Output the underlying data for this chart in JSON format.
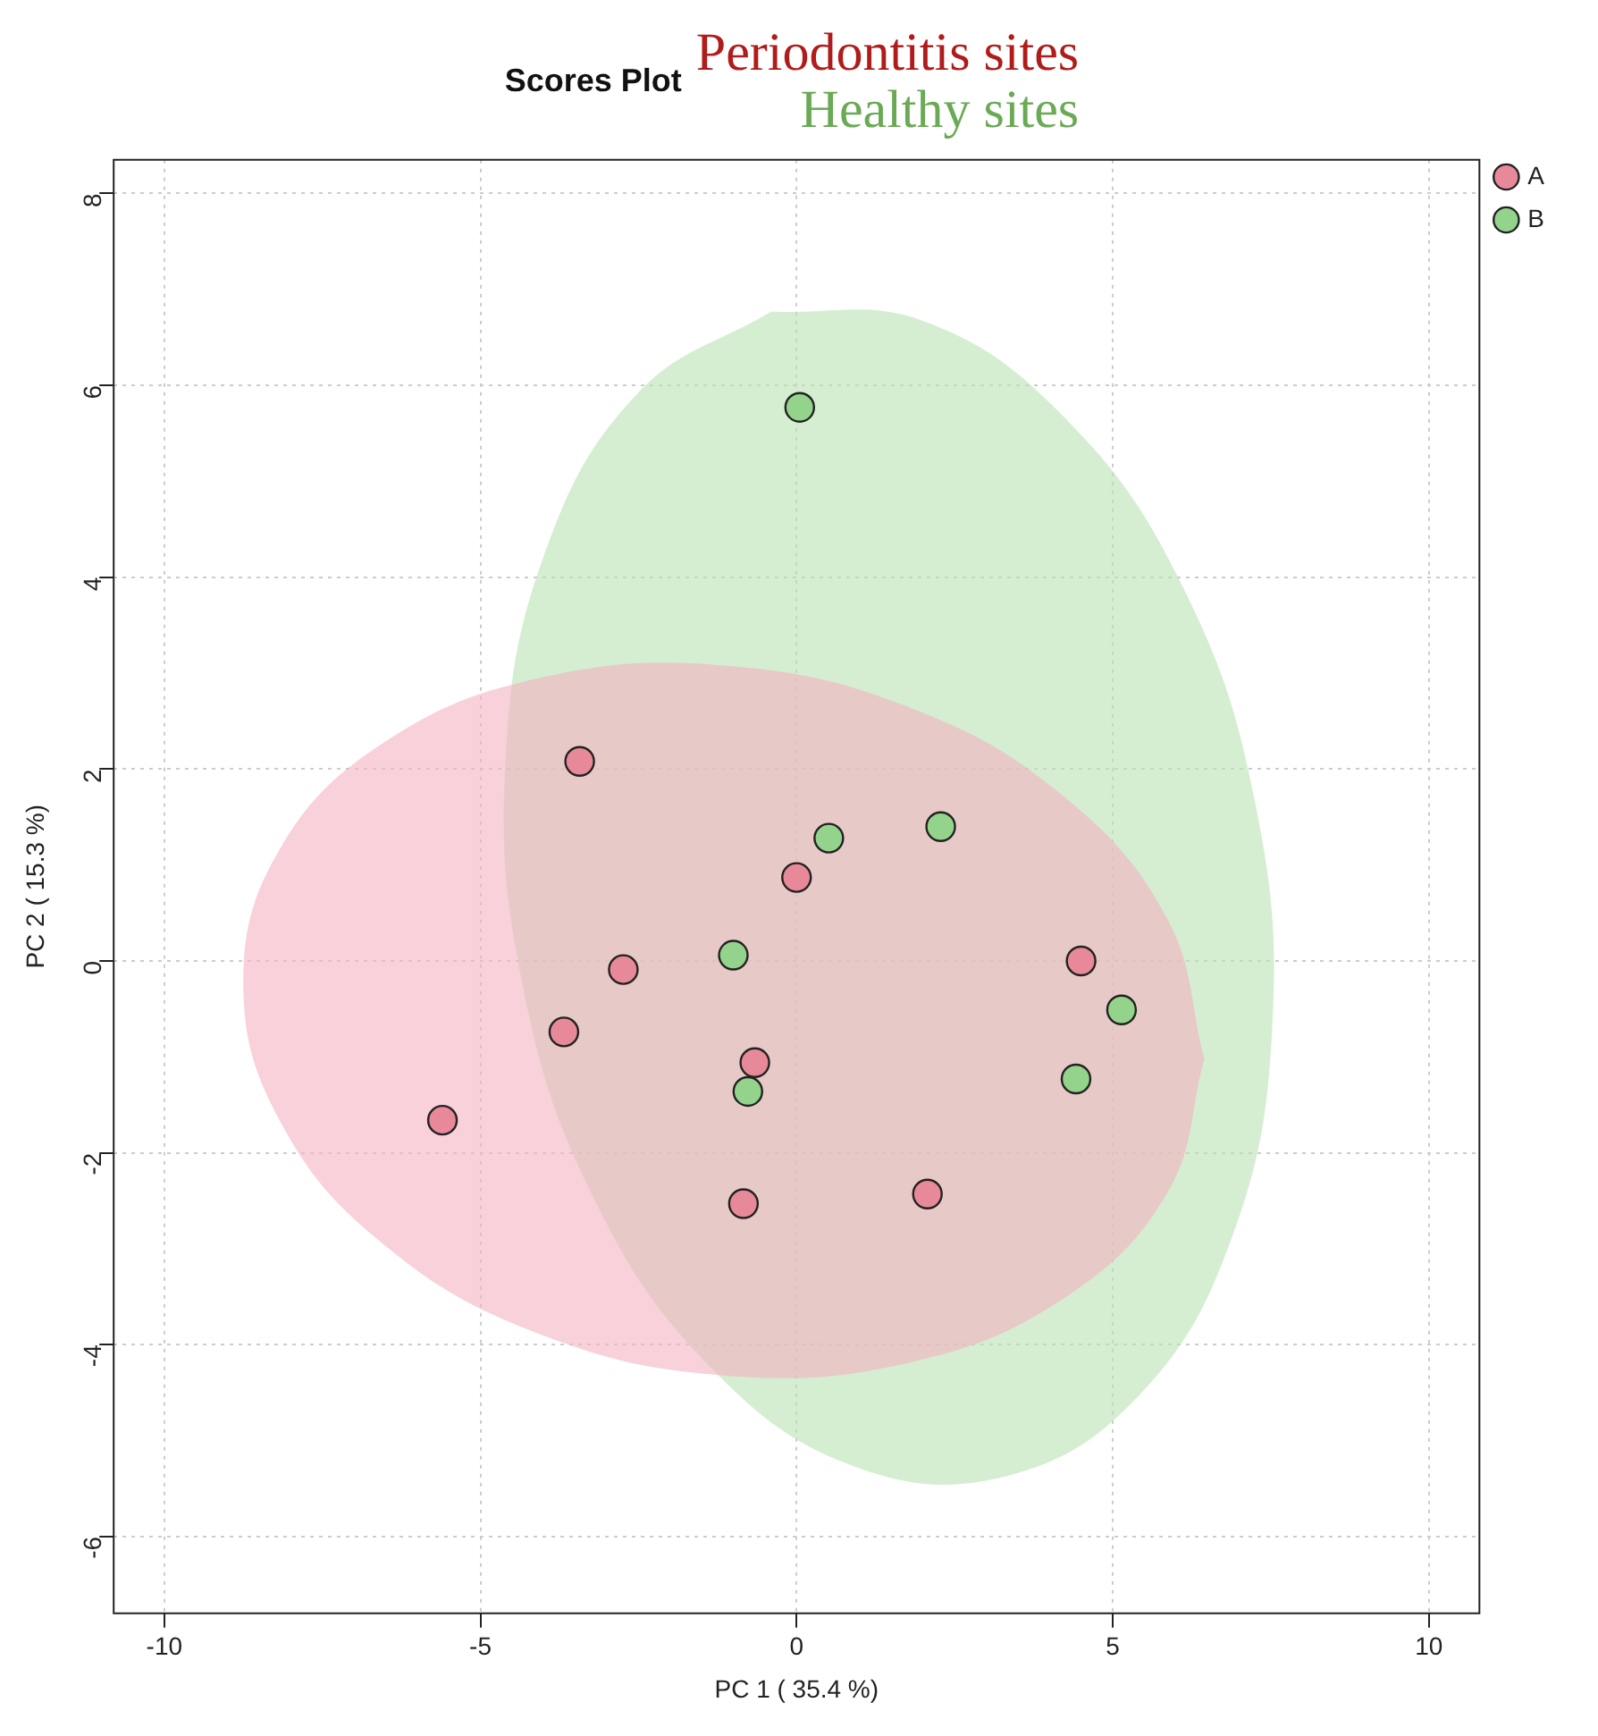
{
  "chart_data": {
    "type": "scatter",
    "title": "Scores Plot",
    "annotations": [
      "Periodontitis sites",
      "Healthy sites"
    ],
    "xlabel": "PC 1 ( 35.4 %)",
    "ylabel": "PC 2 ( 15.3 %)",
    "xlim": [
      -10.8,
      10.8
    ],
    "xticks": [
      -10,
      -5,
      0,
      5,
      10
    ],
    "ylim": [
      -6.8,
      8.35
    ],
    "yticks": [
      -6,
      -4,
      -2,
      0,
      2,
      4,
      6,
      8
    ],
    "grid": true,
    "legend": "top right",
    "marker": "circle",
    "series": [
      {
        "type": "area",
        "marker": "none",
        "color": "#f4b3c2",
        "x": [
          6.45,
          5.87,
          4.22,
          1.76,
          -1.15,
          -4.06,
          -6.52,
          -8.17,
          -8.75,
          -8.17,
          -6.52,
          -4.06,
          -1.15,
          1.76,
          4.22,
          5.87,
          6.45
        ],
        "values": [
          -1.02,
          0.43,
          1.72,
          2.65,
          3.08,
          2.95,
          2.28,
          1.17,
          -0.22,
          -1.67,
          -2.96,
          -3.89,
          -4.32,
          -4.19,
          -3.52,
          -2.41,
          -1.02
        ]
      },
      {
        "type": "area",
        "marker": "none",
        "color": "#b9e3b4",
        "x": [
          -0.4,
          1.96,
          4.23,
          6.1,
          7.25,
          7.52,
          6.87,
          5.4,
          3.32,
          0.96,
          -1.31,
          -3.18,
          -4.33,
          -4.6,
          -3.95,
          -2.48,
          -0.4
        ],
        "values": [
          6.77,
          6.68,
          5.67,
          3.91,
          1.66,
          -0.73,
          -2.91,
          -4.54,
          -5.37,
          -5.28,
          -4.27,
          -2.51,
          -0.26,
          2.13,
          4.31,
          5.94,
          6.77
        ]
      },
      {
        "name": "A",
        "color": "#e8899a",
        "x": [
          -3.43,
          0.0,
          -2.74,
          -3.68,
          -5.6,
          -0.66,
          -0.84,
          2.07,
          4.5
        ],
        "values": [
          2.08,
          0.87,
          -0.09,
          -0.74,
          -1.66,
          -1.06,
          -2.53,
          -2.43,
          0.0
        ]
      },
      {
        "name": "B",
        "color": "#93d38b",
        "x": [
          0.05,
          0.51,
          2.28,
          -1.0,
          -0.77,
          5.14,
          4.42
        ],
        "values": [
          5.77,
          1.28,
          1.4,
          0.06,
          -1.36,
          -0.51,
          -1.23
        ]
      }
    ]
  }
}
